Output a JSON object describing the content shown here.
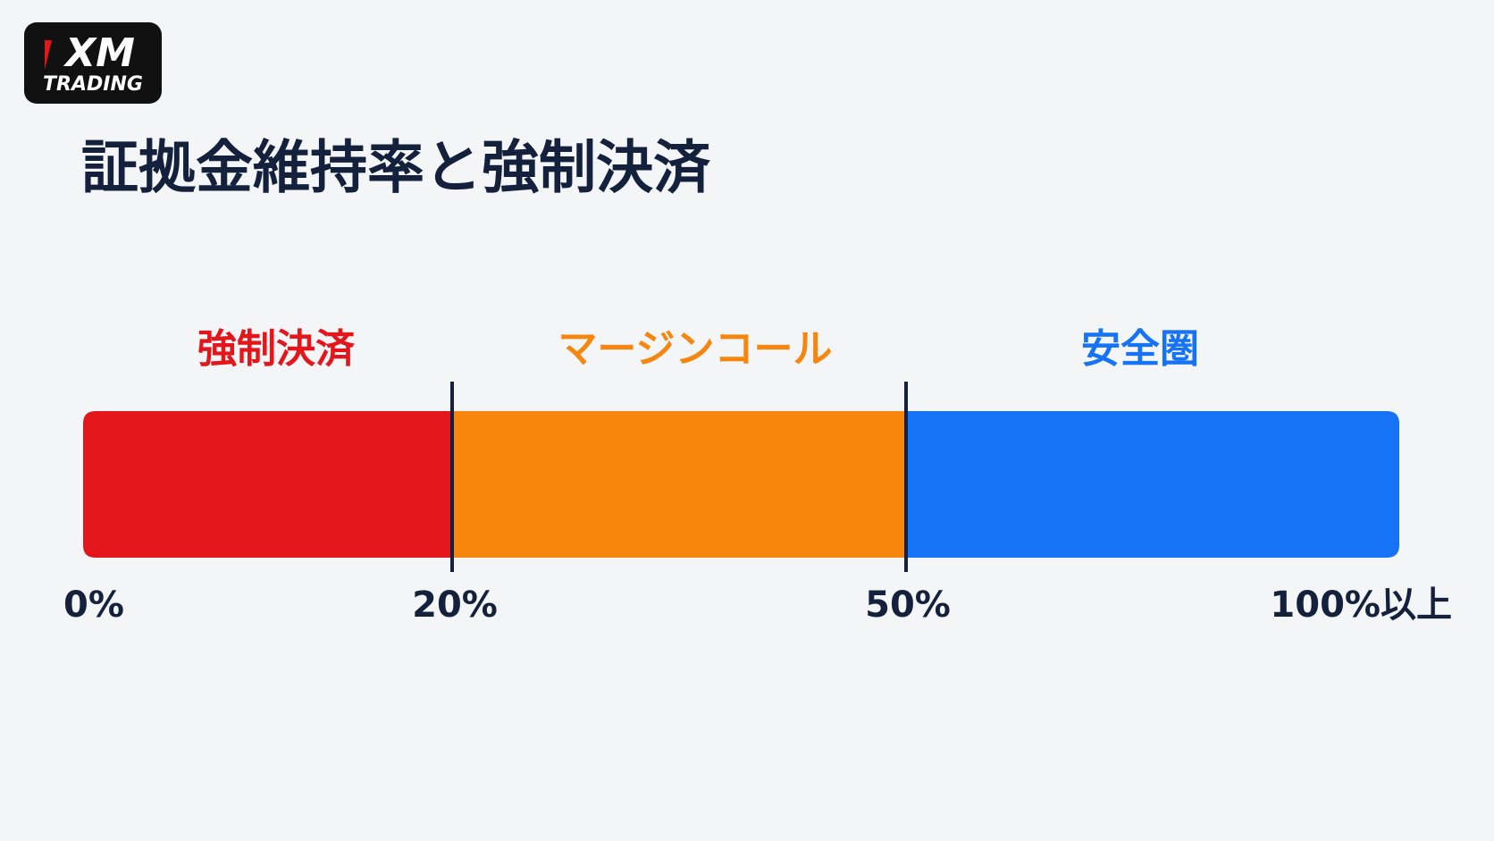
{
  "logo": {
    "brand": "XM",
    "sub": "TRADING"
  },
  "title": "証拠金維持率と強制決済",
  "zones": [
    {
      "label": "強制決済",
      "color": "#e3161b"
    },
    {
      "label": "マージンコール",
      "color": "#f7860f"
    },
    {
      "label": "安全圏",
      "color": "#1673f5"
    }
  ],
  "scale_labels": [
    "0%",
    "20%",
    "50%",
    "100%以上"
  ]
}
